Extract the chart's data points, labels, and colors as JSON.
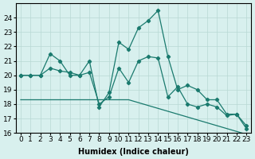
{
  "xlabel": "Humidex (Indice chaleur)",
  "x": [
    0,
    1,
    2,
    3,
    4,
    5,
    6,
    7,
    8,
    9,
    10,
    11,
    12,
    13,
    14,
    15,
    16,
    17,
    18,
    19,
    20,
    21,
    22,
    23
  ],
  "line1": [
    20,
    20,
    20,
    21.5,
    21,
    20,
    20,
    21,
    17.8,
    18.8,
    22.3,
    21.8,
    23.3,
    23.8,
    24.5,
    21.3,
    19.0,
    19.3,
    19.0,
    18.3,
    18.3,
    17.3,
    17.3,
    16.3
  ],
  "line2": [
    20,
    20,
    20,
    20.5,
    20.3,
    20.2,
    20.0,
    20.2,
    18.0,
    18.5,
    20.5,
    19.5,
    21.0,
    21.3,
    21.2,
    18.5,
    19.2,
    18.0,
    17.8,
    18.0,
    17.8,
    17.2,
    17.3,
    16.5
  ],
  "line3": [
    18.3,
    18.3,
    18.3,
    18.3,
    18.3,
    18.3,
    18.3,
    18.3,
    18.3,
    18.3,
    18.3,
    18.3,
    18.1,
    17.9,
    17.7,
    17.5,
    17.3,
    17.1,
    16.9,
    16.7,
    16.5,
    16.3,
    16.1,
    15.9
  ],
  "line_color": "#1a7a6e",
  "bg_color": "#d8f0ee",
  "grid_color": "#b8d8d4",
  "ylim": [
    16,
    25
  ],
  "yticks": [
    16,
    17,
    18,
    19,
    20,
    21,
    22,
    23,
    24
  ],
  "xlabel_fontsize": 7,
  "tick_fontsize": 6.5
}
